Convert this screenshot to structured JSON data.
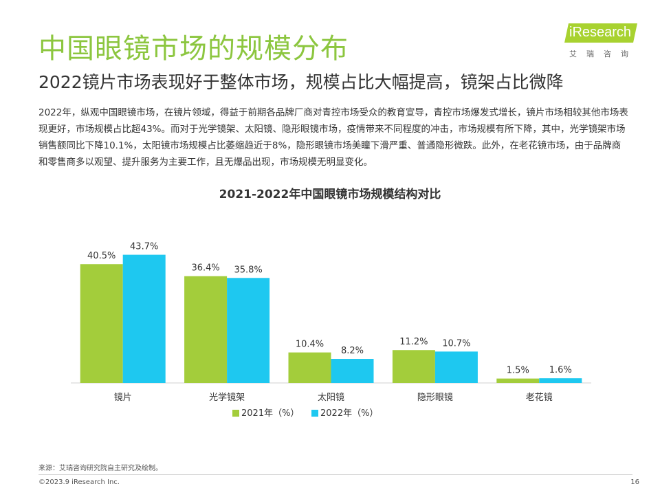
{
  "page": {
    "title": "中国眼镜市场的规模分布",
    "subtitle": "2022镜片市场表现好于整体市场，规模占比大幅提高，镜架占比微降",
    "description": "2022年，纵观中国眼镜市场，在镜片领域，得益于前期各品牌厂商对青控市场受众的教育宣导，青控市场爆发式增长，镜片市场相较其他市场表现更好，市场规模占比超43%。而对于光学镜架、太阳镜、隐形眼镜市场，疫情带来不同程度的冲击，市场规模有所下降，其中，光学镜架市场销售额同比下降10.1%，太阳镜市场规模占比萎缩趋近于8%，隐形眼镜市场美瞳下滑严重、普通隐形微跌。此外，在老花镜市场，由于品牌商和零售商多以观望、提升服务为主要工作，且无爆品出现，市场规模无明显变化。",
    "source": "来源：艾瑞咨询研究院自主研究及绘制。",
    "copyright": "©2023.9 iResearch Inc.",
    "page_number": "16"
  },
  "logo": {
    "text": "iResearch",
    "sub": "艾瑞咨询"
  },
  "chart_data": {
    "type": "bar",
    "title": "2021-2022年中国眼镜市场规模结构对比",
    "categories": [
      "镜片",
      "光学镜架",
      "太阳镜",
      "隐形眼镜",
      "老花镜"
    ],
    "series": [
      {
        "name": "2021年（%）",
        "values": [
          40.5,
          36.4,
          10.4,
          11.2,
          1.5
        ],
        "labels": [
          "40.5%",
          "36.4%",
          "10.4%",
          "11.2%",
          "1.5%"
        ],
        "color": "#a3cd3b"
      },
      {
        "name": "2022年（%）",
        "values": [
          43.7,
          35.8,
          8.2,
          10.7,
          1.6
        ],
        "labels": [
          "43.7%",
          "35.8%",
          "8.2%",
          "10.7%",
          "1.6%"
        ],
        "color": "#1ec8f0"
      }
    ],
    "ylim": [
      0,
      50
    ],
    "grid": false,
    "legend": "bottom"
  }
}
